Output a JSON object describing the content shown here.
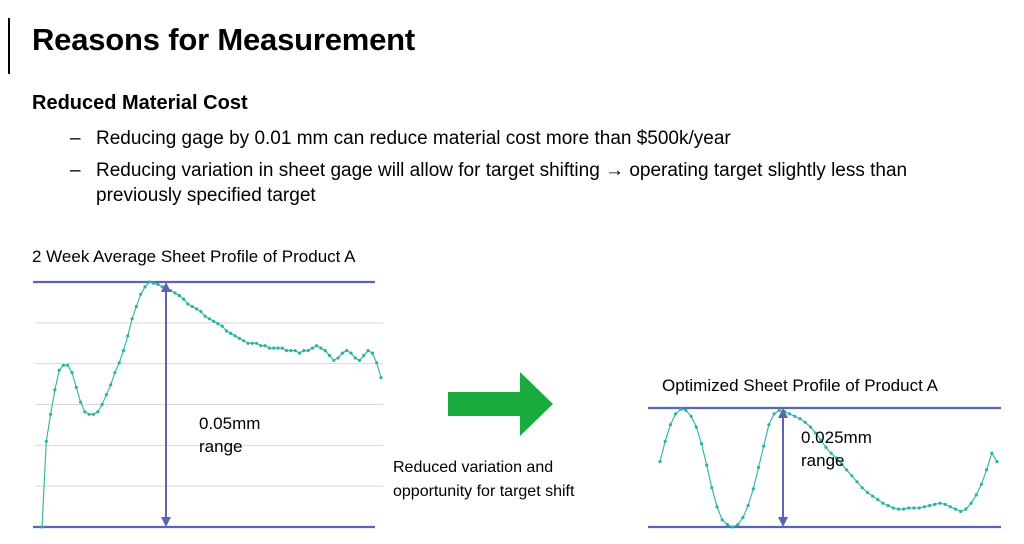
{
  "slide": {
    "title": "Reasons for Measurement",
    "subtitle": "Reduced Material Cost",
    "bullets": [
      {
        "dash": "–",
        "text": "Reducing gage by 0.01 mm can reduce material cost more than $500k/year"
      },
      {
        "dash": "–",
        "text": "Reducing variation in sheet gage will allow for target shifting → operating target slightly less than previously specified target"
      }
    ],
    "arrow_caption_line1": "Reduced variation and",
    "arrow_caption_line2": "opportunity for target shift"
  },
  "colors": {
    "series": "#2ab3a3",
    "bounds": "#5b64b0",
    "grid": "#d9d9d9",
    "arrow": "#1aab3f"
  },
  "chart_data": [
    {
      "type": "line",
      "title": "2 Week Average Sheet Profile of Product A",
      "range_label_line1": "0.05mm",
      "range_label_line2": "range",
      "grid": true,
      "ylim": [
        0,
        1
      ],
      "x": [
        0,
        1,
        2,
        3,
        4,
        5,
        6,
        7,
        8,
        9,
        10,
        11,
        12,
        13,
        14,
        15,
        16,
        17,
        18,
        19,
        20,
        21,
        22,
        23,
        24,
        25,
        26,
        27,
        28,
        29,
        30,
        31,
        32,
        33,
        34,
        35,
        36,
        37,
        38,
        39,
        40,
        41,
        42,
        43,
        44,
        45,
        46,
        47,
        48,
        49,
        50,
        51,
        52,
        53,
        54,
        55,
        56,
        57,
        58,
        59,
        60,
        61,
        62,
        63,
        64,
        65,
        66,
        67,
        68,
        69,
        70,
        71,
        72,
        73,
        74,
        75,
        76,
        77,
        78,
        79
      ],
      "values": [
        0.0,
        0.35,
        0.46,
        0.56,
        0.64,
        0.66,
        0.66,
        0.63,
        0.57,
        0.51,
        0.47,
        0.46,
        0.46,
        0.47,
        0.5,
        0.54,
        0.58,
        0.63,
        0.67,
        0.72,
        0.78,
        0.85,
        0.9,
        0.95,
        0.98,
        1.0,
        0.995,
        0.99,
        0.98,
        0.97,
        0.965,
        0.955,
        0.945,
        0.93,
        0.91,
        0.9,
        0.89,
        0.88,
        0.86,
        0.85,
        0.84,
        0.83,
        0.82,
        0.8,
        0.79,
        0.78,
        0.77,
        0.76,
        0.75,
        0.75,
        0.75,
        0.74,
        0.74,
        0.73,
        0.73,
        0.73,
        0.73,
        0.72,
        0.72,
        0.72,
        0.71,
        0.72,
        0.72,
        0.73,
        0.74,
        0.73,
        0.72,
        0.7,
        0.68,
        0.69,
        0.71,
        0.72,
        0.71,
        0.69,
        0.68,
        0.7,
        0.72,
        0.71,
        0.67,
        0.61
      ]
    },
    {
      "type": "line",
      "title": "Optimized Sheet Profile of Product A",
      "range_label_line1": "0.025mm",
      "range_label_line2": "range",
      "grid": false,
      "ylim": [
        0,
        1
      ],
      "x": [
        0,
        1,
        2,
        3,
        4,
        5,
        6,
        7,
        8,
        9,
        10,
        11,
        12,
        13,
        14,
        15,
        16,
        17,
        18,
        19,
        20,
        21,
        22,
        23,
        24,
        25,
        26,
        27,
        28,
        29,
        30,
        31,
        32,
        33,
        34,
        35,
        36,
        37,
        38,
        39,
        40,
        41,
        42,
        43,
        44,
        45,
        46,
        47,
        48,
        49,
        50,
        51,
        52,
        53,
        54,
        55,
        56,
        57,
        58,
        59,
        60,
        61,
        62,
        63,
        64,
        65
      ],
      "values": [
        0.55,
        0.72,
        0.86,
        0.95,
        0.99,
        0.98,
        0.93,
        0.84,
        0.7,
        0.52,
        0.33,
        0.17,
        0.06,
        0.02,
        0.0,
        0.02,
        0.08,
        0.18,
        0.32,
        0.5,
        0.68,
        0.86,
        0.95,
        0.98,
        0.97,
        0.95,
        0.93,
        0.91,
        0.88,
        0.84,
        0.79,
        0.73,
        0.67,
        0.62,
        0.58,
        0.53,
        0.48,
        0.43,
        0.38,
        0.33,
        0.29,
        0.26,
        0.23,
        0.2,
        0.18,
        0.16,
        0.15,
        0.15,
        0.16,
        0.16,
        0.16,
        0.17,
        0.18,
        0.19,
        0.2,
        0.19,
        0.17,
        0.15,
        0.13,
        0.15,
        0.2,
        0.27,
        0.36,
        0.48,
        0.62,
        0.55
      ]
    }
  ]
}
